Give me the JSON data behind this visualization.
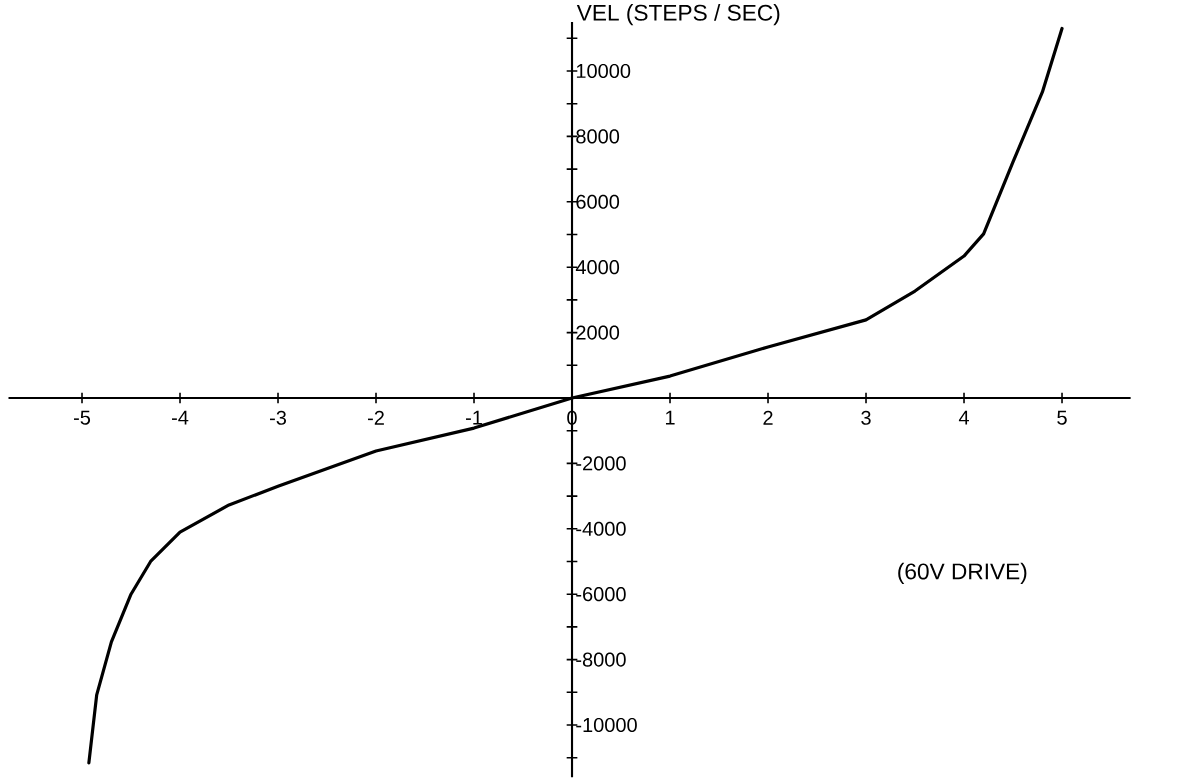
{
  "chart_data": {
    "type": "line",
    "ylabel": "VEL (STEPS / SEC)",
    "annotations": [
      "(60V DRIVE)"
    ],
    "xlim": [
      -5.75,
      5.7
    ],
    "ylim": [
      -11600,
      11500
    ],
    "xticks": [
      -5,
      -4,
      -3,
      -2,
      -1,
      0,
      1,
      2,
      3,
      4,
      5
    ],
    "yticks": [
      {
        "value": -11000,
        "label": null
      },
      -10000,
      {
        "value": -9000,
        "label": null
      },
      -8000,
      {
        "value": -7000,
        "label": null
      },
      -6000,
      {
        "value": -5000,
        "label": null
      },
      -4000,
      {
        "value": -3000,
        "label": null
      },
      -2000,
      {
        "value": -1000,
        "label": null
      },
      {
        "value": 1000,
        "label": null
      },
      2000,
      {
        "value": 3000,
        "label": null
      },
      4000,
      {
        "value": 5000,
        "label": null
      },
      6000,
      {
        "value": 7000,
        "label": null
      },
      8000,
      {
        "value": 9000,
        "label": null
      },
      10000,
      {
        "value": 11000,
        "label": null
      }
    ],
    "marker": "none",
    "line_style": "solid",
    "series": [
      {
        "color": "#000000",
        "x": [
          -4.93,
          -4.85,
          -4.7,
          -4.5,
          -4.3,
          -4.0,
          -3.5,
          -3.0,
          -2.0,
          -1.0,
          0,
          1,
          2,
          3,
          3.5,
          4.0,
          4.2,
          4.5,
          4.8,
          5.0
        ],
        "values": [
          -11160,
          -9080,
          -7460,
          -6000,
          -5000,
          -4100,
          -3270,
          -2700,
          -1620,
          -920,
          0,
          670,
          1560,
          2390,
          3270,
          4340,
          5020,
          7220,
          9360,
          11300
        ]
      }
    ]
  }
}
